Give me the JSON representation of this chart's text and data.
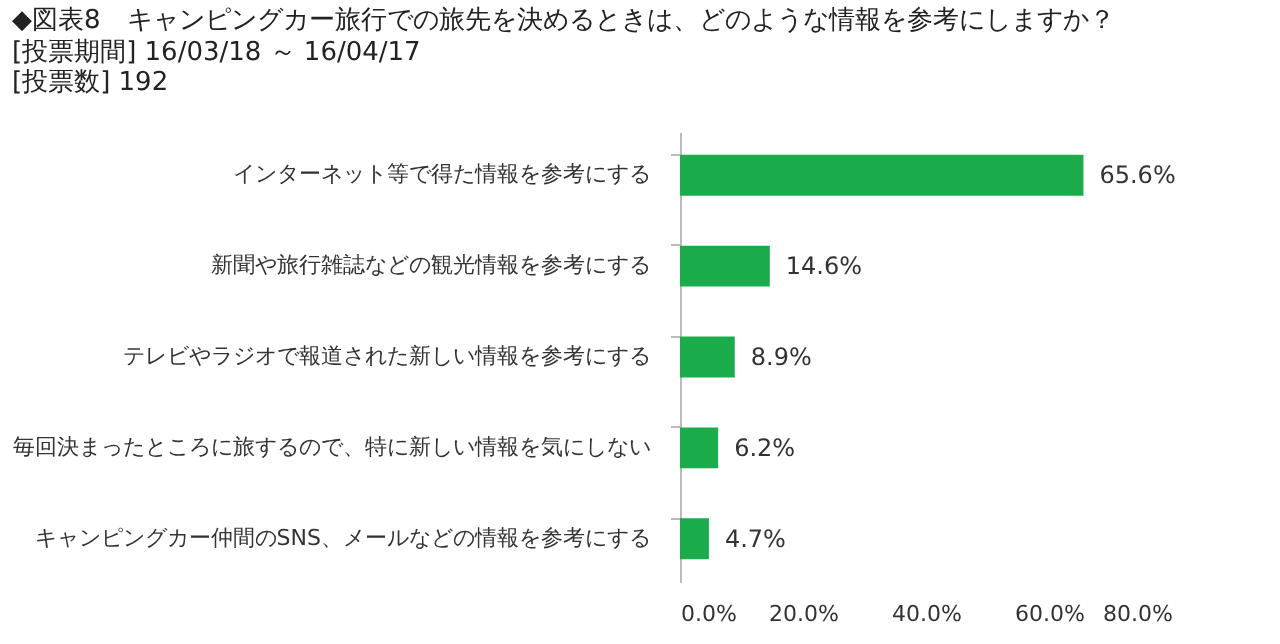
{
  "chart_data": {
    "type": "bar",
    "orientation": "horizontal",
    "title": "◆図表8　キャンピングカー旅行での旅先を決めるときは、どのような情報を参考にしますか？",
    "subtitle": [
      "[投票期間] 16/03/18 ～ 16/04/17",
      "[投票数]          192"
    ],
    "categories": [
      "インターネット等で得た情報を参考にする",
      "新聞や旅行雑誌などの観光情報を参考にする",
      "テレビやラジオで報道された新しい情報を参考にする",
      "毎回決まったところに旅するので、特に新しい情報を気にしない",
      "キャンピングカー仲間のSNS、メールなどの情報を参考にする"
    ],
    "values": [
      65.6,
      14.6,
      8.9,
      6.2,
      4.7
    ],
    "value_labels": [
      "65.6%",
      "14.6%",
      "8.9%",
      "6.2%",
      "4.7%"
    ],
    "color": "#1aab4b",
    "xlim": [
      0,
      80
    ],
    "xticks": [
      {
        "value": 0,
        "label": "0.0%"
      },
      {
        "value": 20,
        "label": "20.0%"
      },
      {
        "value": 40,
        "label": "40.0%"
      },
      {
        "value": 60,
        "label": "60.0%"
      },
      {
        "value": 80,
        "label": "80.0%"
      }
    ],
    "grid": false
  }
}
